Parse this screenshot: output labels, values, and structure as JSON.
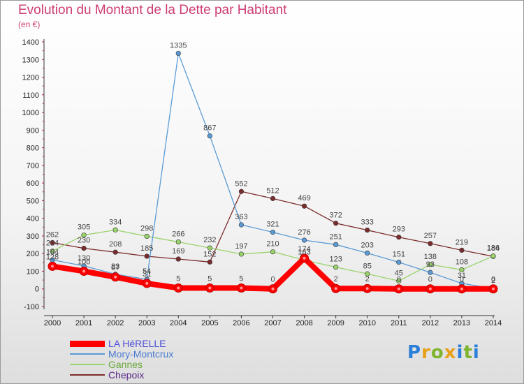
{
  "title": "Evolution du Montant de la Dette par Habitant",
  "subtitle": "(en €)",
  "logo": {
    "letters": [
      "P",
      "r",
      "o",
      "x",
      "i",
      "t",
      "i"
    ],
    "colors": [
      "#2c7fd8",
      "#e8a01a",
      "#7fb52e",
      "#e8a01a",
      "#2c7fd8",
      "#7fb52e",
      "#2c7fd8"
    ]
  },
  "chart_data": {
    "type": "line",
    "x": [
      "2000",
      "2001",
      "2002",
      "2003",
      "2004",
      "2005",
      "2006",
      "2007",
      "2008",
      "2009",
      "2010",
      "2011",
      "2012",
      "2013",
      "2014"
    ],
    "ylim": [
      -100,
      1400
    ],
    "yticks": [
      "-100",
      "0",
      "100",
      "200",
      "300",
      "400",
      "500",
      "600",
      "700",
      "800",
      "900",
      "1000",
      "1100",
      "1200",
      "1300",
      "1400"
    ],
    "grid": false,
    "legend_position": "bottom-left",
    "series": [
      {
        "name": "LA HéRELLE",
        "color": "#ff0000",
        "values": [
          128,
          100,
          67,
          31,
          5,
          5,
          5,
          0,
          174,
          2,
          2,
          0,
          0,
          0,
          0
        ],
        "labels": [
          "128",
          "100",
          "67",
          "31",
          "5",
          "5",
          "5",
          "0",
          "174",
          "2",
          "2",
          "0",
          "0",
          "0",
          "0"
        ]
      },
      {
        "name": "Mory-Montcrux",
        "color": "#5b9bd5",
        "values": [
          164,
          130,
          83,
          54,
          1335,
          867,
          363,
          321,
          276,
          251,
          203,
          151,
          93,
          31,
          2
        ],
        "labels": [
          "164",
          "130",
          "83",
          "54",
          "1335",
          "867",
          "363",
          "321",
          "276",
          "251",
          "203",
          "151",
          "93",
          "31",
          "2"
        ]
      },
      {
        "name": "Gannes",
        "color": "#9ad36c",
        "values": [
          214,
          305,
          334,
          298,
          266,
          232,
          197,
          210,
          163,
          123,
          85,
          45,
          138,
          108,
          186
        ],
        "labels": [
          "214",
          "305",
          "334",
          "298",
          "266",
          "232",
          "197",
          "210",
          "163",
          "123",
          "85",
          "45",
          "138",
          "108",
          "186"
        ]
      },
      {
        "name": "Chepoix",
        "color": "#7b2c2c",
        "values": [
          262,
          230,
          208,
          185,
          169,
          152,
          552,
          512,
          469,
          372,
          333,
          293,
          257,
          219,
          184
        ],
        "labels": [
          "262",
          "230",
          "208",
          "185",
          "169",
          "152",
          "552",
          "512",
          "469",
          "372",
          "333",
          "293",
          "257",
          "219",
          "184"
        ]
      }
    ]
  }
}
